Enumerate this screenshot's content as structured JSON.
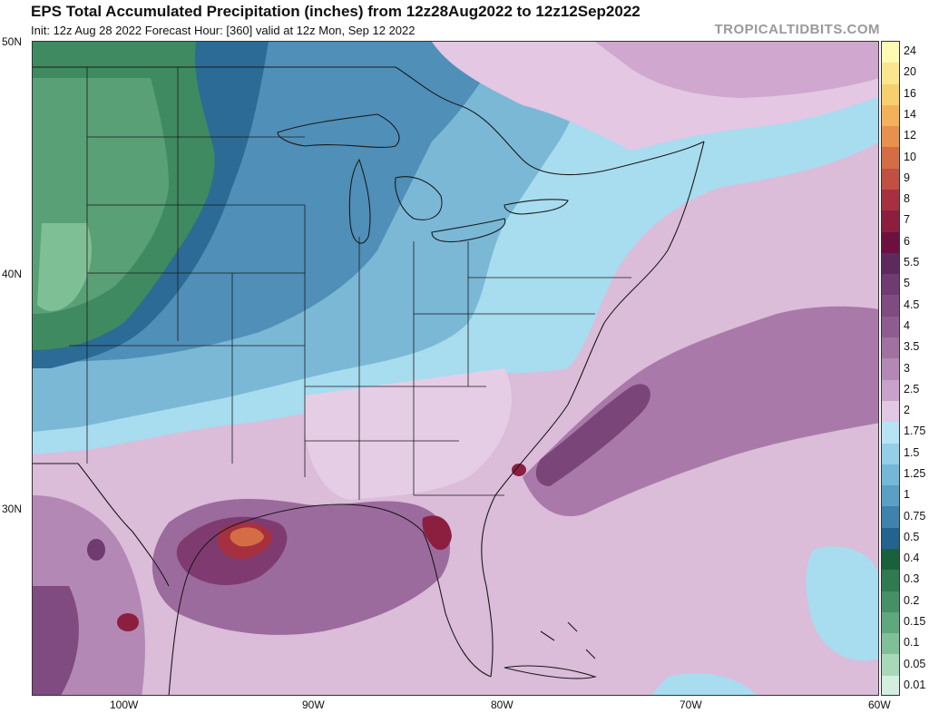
{
  "header": {
    "title": "EPS Total Accumulated Precipitation (inches) from 12z28Aug2022 to 12z12Sep2022",
    "subtitle": "Init: 12z Aug 28 2022   Forecast Hour: [360]   valid at 12z Mon, Sep 12 2022",
    "brand": "TROPICALTIDBITS.COM"
  },
  "map": {
    "lat_labels": [
      "50N",
      "40N",
      "30N"
    ],
    "lon_labels": [
      "100W",
      "90W",
      "80W",
      "70W",
      "60W"
    ]
  },
  "legend": {
    "levels": [
      {
        "label": "24",
        "color": "#fffbb0"
      },
      {
        "label": "20",
        "color": "#fbe58e"
      },
      {
        "label": "16",
        "color": "#f7cf6e"
      },
      {
        "label": "14",
        "color": "#f3b25a"
      },
      {
        "label": "12",
        "color": "#e8914e"
      },
      {
        "label": "10",
        "color": "#d46d45"
      },
      {
        "label": "9",
        "color": "#c14f42"
      },
      {
        "label": "8",
        "color": "#a6303f"
      },
      {
        "label": "7",
        "color": "#8c1f40"
      },
      {
        "label": "6",
        "color": "#6d1040"
      },
      {
        "label": "5.5",
        "color": "#5e2a5e"
      },
      {
        "label": "5",
        "color": "#6f3b70"
      },
      {
        "label": "4.5",
        "color": "#7f4b80"
      },
      {
        "label": "4",
        "color": "#8f5c90"
      },
      {
        "label": "3.5",
        "color": "#a071a1"
      },
      {
        "label": "3",
        "color": "#b488b5"
      },
      {
        "label": "2.5",
        "color": "#c8a2c8"
      },
      {
        "label": "2",
        "color": "#e2c8e2"
      },
      {
        "label": "1.75",
        "color": "#b7e4f4"
      },
      {
        "label": "1.5",
        "color": "#93cfe8"
      },
      {
        "label": "1.25",
        "color": "#73b8d8"
      },
      {
        "label": "1",
        "color": "#5aa0c5"
      },
      {
        "label": "0.75",
        "color": "#3f82ad"
      },
      {
        "label": "0.5",
        "color": "#21648f"
      },
      {
        "label": "0.4",
        "color": "#19613c"
      },
      {
        "label": "0.3",
        "color": "#2f7a4f"
      },
      {
        "label": "0.2",
        "color": "#469066"
      },
      {
        "label": "0.15",
        "color": "#5fa77c"
      },
      {
        "label": "0.1",
        "color": "#80c097"
      },
      {
        "label": "0.05",
        "color": "#a8d8b8"
      },
      {
        "label": "0.01",
        "color": "#d4efdf"
      }
    ]
  }
}
